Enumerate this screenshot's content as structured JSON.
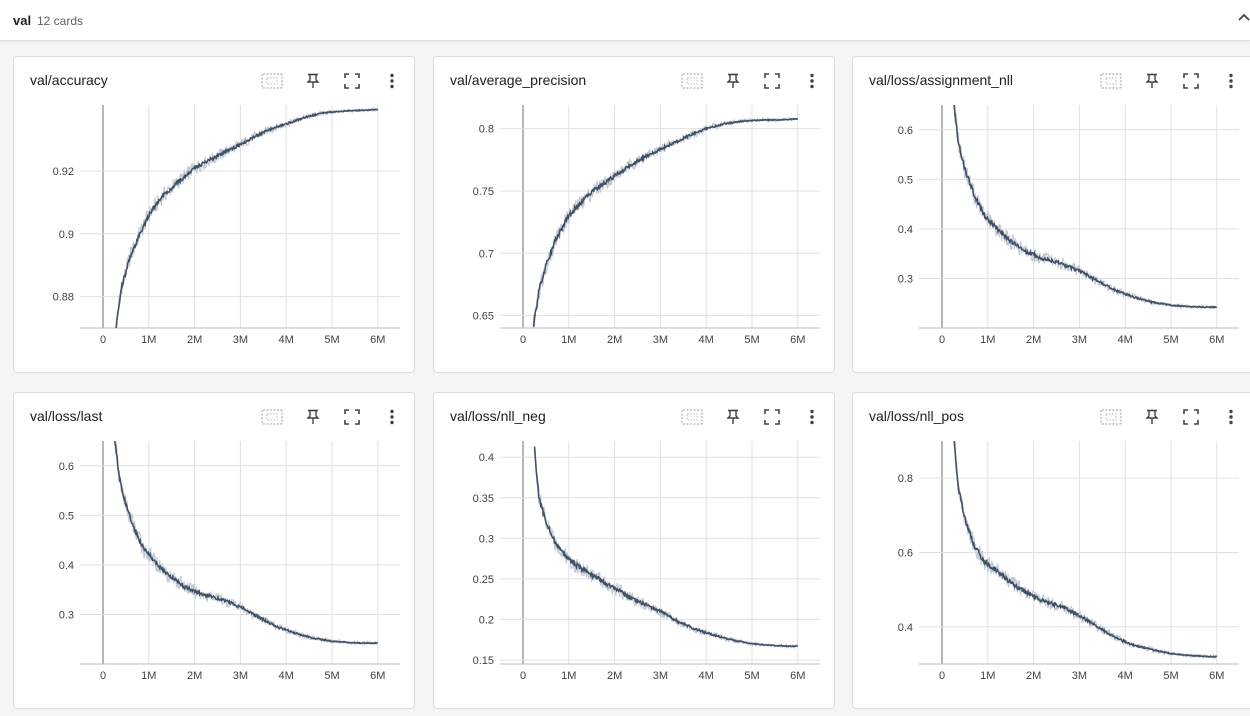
{
  "group": {
    "name": "val",
    "count": "12 cards"
  },
  "icons": {
    "collapse": "chevron-up-icon",
    "fit": "fit-domain-icon",
    "pin": "pin-icon",
    "fullscreen": "fullscreen-icon",
    "more": "more-vert-icon"
  },
  "colors": {
    "line": "#425066",
    "band": "#c3cbd7",
    "grid": "#e0e0e0"
  },
  "cards": [
    {
      "title": "val/accuracy",
      "chart_data": {
        "type": "line",
        "x_ticks": [
          "0",
          "1M",
          "2M",
          "3M",
          "4M",
          "5M",
          "6M"
        ],
        "y_ticks": [
          0.88,
          0.9,
          0.92
        ],
        "y_tick_labels": [
          "0.88",
          "0.9",
          "0.92"
        ],
        "xlim": [
          -500000,
          6200000
        ],
        "ylim": [
          0.87,
          0.941
        ],
        "series": [
          {
            "x": [
              0.28,
              0.4,
              0.6,
              0.8,
              1.0,
              1.3,
              1.6,
              2.0,
              2.4,
              2.8,
              3.2,
              3.6,
              4.0,
              4.4,
              4.8,
              5.2,
              5.6,
              6.0
            ],
            "y": [
              0.87,
              0.883,
              0.893,
              0.9,
              0.906,
              0.912,
              0.916,
              0.921,
              0.924,
              0.927,
              0.93,
              0.933,
              0.935,
              0.937,
              0.9385,
              0.939,
              0.9393,
              0.9395
            ]
          }
        ]
      }
    },
    {
      "title": "val/average_precision",
      "chart_data": {
        "type": "line",
        "x_ticks": [
          "0",
          "1M",
          "2M",
          "3M",
          "4M",
          "5M",
          "6M"
        ],
        "y_ticks": [
          0.65,
          0.7,
          0.75,
          0.8
        ],
        "y_tick_labels": [
          "0.65",
          "0.7",
          "0.75",
          "0.8"
        ],
        "xlim": [
          -500000,
          6200000
        ],
        "ylim": [
          0.64,
          0.819
        ],
        "series": [
          {
            "x": [
              0.22,
              0.35,
              0.5,
              0.7,
              1.0,
              1.3,
              1.6,
              2.0,
              2.4,
              2.8,
              3.2,
              3.6,
              4.0,
              4.4,
              4.8,
              5.2,
              5.6,
              6.0
            ],
            "y": [
              0.64,
              0.67,
              0.69,
              0.71,
              0.73,
              0.742,
              0.752,
              0.762,
              0.772,
              0.78,
              0.787,
              0.794,
              0.8,
              0.804,
              0.806,
              0.807,
              0.807,
              0.808
            ]
          }
        ]
      }
    },
    {
      "title": "val/loss/assignment_nll",
      "chart_data": {
        "type": "line",
        "x_ticks": [
          "0",
          "1M",
          "2M",
          "3M",
          "4M",
          "5M",
          "6M"
        ],
        "y_ticks": [
          0.3,
          0.4,
          0.5,
          0.6
        ],
        "y_tick_labels": [
          "0.3",
          "0.4",
          "0.5",
          "0.6"
        ],
        "xlim": [
          -500000,
          6200000
        ],
        "ylim": [
          0.2,
          0.65
        ],
        "series": [
          {
            "x": [
              0.25,
              0.35,
              0.5,
              0.7,
              0.9,
              1.2,
              1.5,
              1.8,
              2.2,
              2.6,
              3.0,
              3.4,
              3.8,
              4.2,
              4.6,
              5.0,
              5.4,
              5.8,
              6.0
            ],
            "y": [
              0.66,
              0.58,
              0.52,
              0.47,
              0.43,
              0.4,
              0.375,
              0.355,
              0.34,
              0.33,
              0.315,
              0.295,
              0.275,
              0.262,
              0.252,
              0.246,
              0.243,
              0.242,
              0.242
            ]
          }
        ]
      }
    },
    {
      "title": "val/loss/last",
      "chart_data": {
        "type": "line",
        "x_ticks": [
          "0",
          "1M",
          "2M",
          "3M",
          "4M",
          "5M",
          "6M"
        ],
        "y_ticks": [
          0.3,
          0.4,
          0.5,
          0.6
        ],
        "y_tick_labels": [
          "0.3",
          "0.4",
          "0.5",
          "0.6"
        ],
        "xlim": [
          -500000,
          6200000
        ],
        "ylim": [
          0.2,
          0.65
        ],
        "series": [
          {
            "x": [
              0.25,
              0.35,
              0.5,
              0.7,
              0.9,
              1.2,
              1.5,
              1.8,
              2.2,
              2.6,
              3.0,
              3.4,
              3.8,
              4.2,
              4.6,
              5.0,
              5.4,
              5.8,
              6.0
            ],
            "y": [
              0.66,
              0.58,
              0.52,
              0.47,
              0.43,
              0.4,
              0.375,
              0.355,
              0.34,
              0.33,
              0.315,
              0.295,
              0.275,
              0.262,
              0.252,
              0.246,
              0.243,
              0.242,
              0.242
            ]
          }
        ]
      }
    },
    {
      "title": "val/loss/nll_neg",
      "chart_data": {
        "type": "line",
        "x_ticks": [
          "0",
          "1M",
          "2M",
          "3M",
          "4M",
          "5M",
          "6M"
        ],
        "y_ticks": [
          0.15,
          0.2,
          0.25,
          0.3,
          0.35,
          0.4
        ],
        "y_tick_labels": [
          "0.15",
          "0.2",
          "0.25",
          "0.3",
          "0.35",
          "0.4"
        ],
        "xlim": [
          -500000,
          6200000
        ],
        "ylim": [
          0.145,
          0.42
        ],
        "series": [
          {
            "x": [
              0.25,
              0.35,
              0.5,
              0.7,
              0.9,
              1.2,
              1.5,
              1.8,
              2.2,
              2.6,
              3.0,
              3.4,
              3.8,
              4.2,
              4.6,
              5.0,
              5.4,
              5.8,
              6.0
            ],
            "y": [
              0.41,
              0.35,
              0.32,
              0.295,
              0.28,
              0.265,
              0.255,
              0.245,
              0.232,
              0.22,
              0.21,
              0.197,
              0.187,
              0.18,
              0.174,
              0.17,
              0.168,
              0.167,
              0.167
            ]
          }
        ]
      }
    },
    {
      "title": "val/loss/nll_pos",
      "chart_data": {
        "type": "line",
        "x_ticks": [
          "0",
          "1M",
          "2M",
          "3M",
          "4M",
          "5M",
          "6M"
        ],
        "y_ticks": [
          0.4,
          0.6,
          0.8
        ],
        "y_tick_labels": [
          "0.4",
          "0.6",
          "0.8"
        ],
        "xlim": [
          -500000,
          6200000
        ],
        "ylim": [
          0.3,
          0.9
        ],
        "series": [
          {
            "x": [
              0.25,
              0.35,
              0.5,
              0.7,
              0.9,
              1.2,
              1.5,
              1.8,
              2.2,
              2.6,
              3.0,
              3.4,
              3.8,
              4.2,
              4.6,
              5.0,
              5.4,
              5.8,
              6.0
            ],
            "y": [
              0.92,
              0.78,
              0.69,
              0.62,
              0.58,
              0.55,
              0.52,
              0.495,
              0.47,
              0.455,
              0.43,
              0.4,
              0.37,
              0.35,
              0.338,
              0.328,
              0.323,
              0.32,
              0.32
            ]
          }
        ]
      }
    }
  ]
}
